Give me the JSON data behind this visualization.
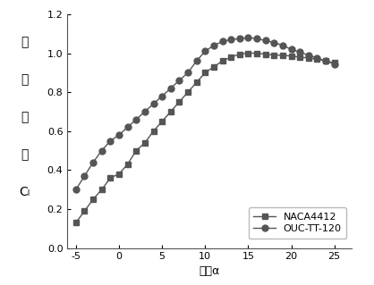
{
  "naca4412_x": [
    -5,
    -4,
    -3,
    -2,
    -1,
    0,
    1,
    2,
    3,
    4,
    5,
    6,
    7,
    8,
    9,
    10,
    11,
    12,
    13,
    14,
    15,
    16,
    17,
    18,
    19,
    20,
    21,
    22,
    23,
    24,
    25
  ],
  "naca4412_y": [
    0.13,
    0.19,
    0.25,
    0.3,
    0.36,
    0.38,
    0.43,
    0.5,
    0.54,
    0.6,
    0.65,
    0.7,
    0.75,
    0.8,
    0.85,
    0.9,
    0.93,
    0.96,
    0.98,
    0.995,
    1.0,
    1.0,
    0.995,
    0.99,
    0.99,
    0.985,
    0.98,
    0.975,
    0.97,
    0.96,
    0.95
  ],
  "ouc_x": [
    -5,
    -4,
    -3,
    -2,
    -1,
    0,
    1,
    2,
    3,
    4,
    5,
    6,
    7,
    8,
    9,
    10,
    11,
    12,
    13,
    14,
    15,
    16,
    17,
    18,
    19,
    20,
    21,
    22,
    23,
    24,
    25
  ],
  "ouc_y": [
    0.3,
    0.37,
    0.44,
    0.5,
    0.55,
    0.58,
    0.62,
    0.66,
    0.7,
    0.74,
    0.78,
    0.82,
    0.86,
    0.9,
    0.96,
    1.01,
    1.04,
    1.06,
    1.07,
    1.075,
    1.08,
    1.075,
    1.065,
    1.055,
    1.04,
    1.02,
    1.005,
    0.99,
    0.975,
    0.96,
    0.945
  ],
  "xlabel": "攻角α",
  "ylabel_chars": [
    "升",
    "力",
    "系",
    "数",
    "Cₗ"
  ],
  "xlim": [
    -6,
    27
  ],
  "ylim": [
    0.0,
    1.2
  ],
  "xticks": [
    -5,
    0,
    5,
    10,
    15,
    20,
    25
  ],
  "yticks": [
    0.0,
    0.2,
    0.4,
    0.6,
    0.8,
    1.0,
    1.2
  ],
  "naca_label": "NACA4412",
  "ouc_label": "OUC-TT-120",
  "line_color": "#555555",
  "marker_square": "s",
  "marker_circle": "o",
  "markersize": 5,
  "linewidth": 1.0,
  "fontsize_tick": 8,
  "fontsize_label": 9,
  "fontsize_ylabel": 10,
  "bg_color": "#f0f0f0"
}
